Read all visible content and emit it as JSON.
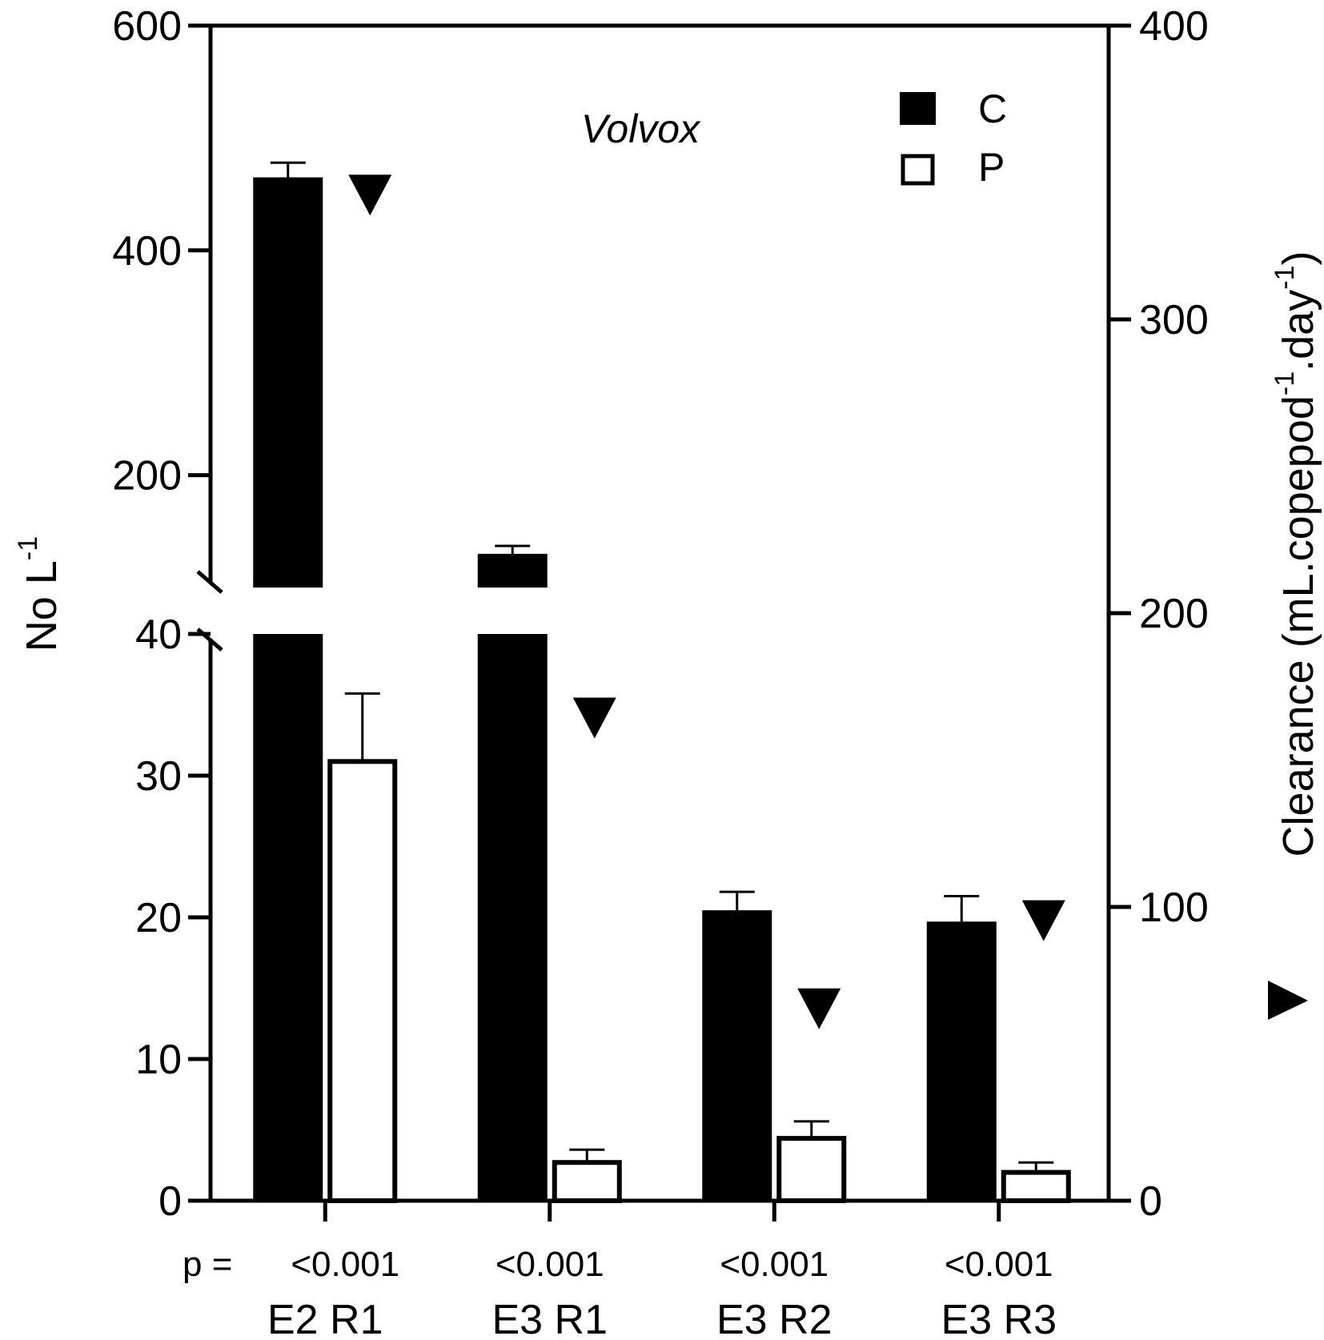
{
  "chart_data": {
    "type": "bar",
    "title": "Volvox",
    "categories": [
      "E2 R1",
      "E3 R1",
      "E3 R2",
      "E3 R3"
    ],
    "p_label": "p =",
    "p_values": [
      "<0.001",
      "<0.001",
      "<0.001",
      "<0.001"
    ],
    "left_axis": {
      "label": "No L",
      "label_sup": "-1",
      "lower_segment": {
        "range": [
          0,
          40
        ],
        "ticks": [
          0,
          10,
          20,
          30,
          40
        ]
      },
      "upper_segment": {
        "range": [
          100,
          600
        ],
        "ticks": [
          200,
          400,
          600
        ]
      },
      "broken": true
    },
    "right_axis": {
      "label_parts": [
        {
          "text": "Clearance (mL.copepod",
          "sup": false
        },
        {
          "text": "-1",
          "sup": true
        },
        {
          "text": ".day",
          "sup": false
        },
        {
          "text": "-1",
          "sup": true
        },
        {
          "text": ")",
          "sup": false
        }
      ],
      "range": [
        0,
        400
      ],
      "ticks": [
        0,
        100,
        200,
        300,
        400
      ]
    },
    "series": [
      {
        "name": "C",
        "fill": "#000000",
        "values": [
          465,
          130,
          20.5,
          19.7
        ],
        "errors": [
          13,
          7,
          1.3,
          1.8
        ]
      },
      {
        "name": "P",
        "fill": "#ffffff",
        "values": [
          31,
          2.7,
          4.4,
          2.0
        ],
        "errors": [
          4.8,
          0.9,
          1.2,
          0.7
        ]
      }
    ],
    "clearance": {
      "marker": "down-triangle",
      "values": [
        343,
        165,
        66,
        96
      ]
    },
    "legend": {
      "position": "top-right"
    },
    "colors": {
      "ink": "#000000",
      "background": "#ffffff"
    }
  }
}
